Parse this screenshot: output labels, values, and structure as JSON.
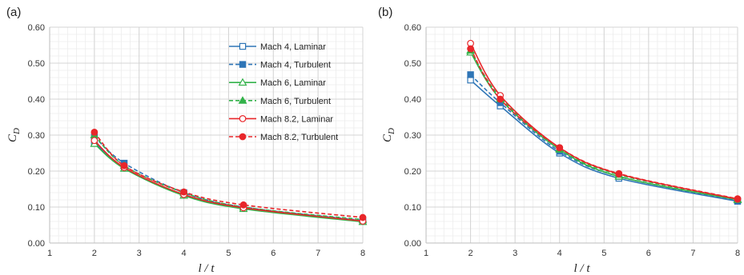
{
  "chart_data": [
    {
      "type": "line",
      "panel_label": "(a)",
      "xlabel": "l / t",
      "ylabel": "C_D",
      "xlim": [
        1,
        8
      ],
      "ylim": [
        0,
        0.6
      ],
      "xticks": [
        "1",
        "2",
        "3",
        "4",
        "5",
        "6",
        "7",
        "8"
      ],
      "yticks": [
        "0.00",
        "0.10",
        "0.20",
        "0.30",
        "0.40",
        "0.50",
        "0.60"
      ],
      "grid": true,
      "legend": "top-right",
      "series": [
        {
          "name": "Mach 4, Laminar",
          "color": "#2e75b6",
          "dash": false,
          "marker": "square-open",
          "x": [
            2,
            2.667,
            4,
            5.333,
            8
          ],
          "y": [
            0.28,
            0.208,
            0.133,
            0.096,
            0.06
          ]
        },
        {
          "name": "Mach 4, Turbulent",
          "color": "#2e75b6",
          "dash": true,
          "marker": "square-filled",
          "x": [
            2,
            2.667,
            4,
            5.333,
            8
          ],
          "y": [
            0.295,
            0.222,
            0.14,
            0.1,
            0.063
          ]
        },
        {
          "name": "Mach 6, Laminar",
          "color": "#33b24a",
          "dash": false,
          "marker": "triangle-open",
          "x": [
            2,
            2.667,
            4,
            5.333,
            8
          ],
          "y": [
            0.276,
            0.207,
            0.132,
            0.095,
            0.059
          ]
        },
        {
          "name": "Mach 6, Turbulent",
          "color": "#33b24a",
          "dash": true,
          "marker": "triangle-filled",
          "x": [
            2,
            2.667,
            4,
            5.333,
            8
          ],
          "y": [
            0.3,
            0.215,
            0.14,
            0.1,
            0.065
          ]
        },
        {
          "name": "Mach 8.2, Laminar",
          "color": "#e8262a",
          "dash": false,
          "marker": "circle-open",
          "x": [
            2,
            2.667,
            4,
            5.333,
            8
          ],
          "y": [
            0.285,
            0.21,
            0.135,
            0.098,
            0.061
          ]
        },
        {
          "name": "Mach 8.2, Turbulent",
          "color": "#e8262a",
          "dash": true,
          "marker": "circle-filled",
          "x": [
            2,
            2.667,
            4,
            5.333,
            8
          ],
          "y": [
            0.308,
            0.215,
            0.142,
            0.106,
            0.071
          ]
        }
      ]
    },
    {
      "type": "line",
      "panel_label": "(b)",
      "xlabel": "l / t",
      "ylabel": "C_D",
      "xlim": [
        1,
        8
      ],
      "ylim": [
        0,
        0.6
      ],
      "xticks": [
        "1",
        "2",
        "3",
        "4",
        "5",
        "6",
        "7",
        "8"
      ],
      "yticks": [
        "0.00",
        "0.10",
        "0.20",
        "0.30",
        "0.40",
        "0.50",
        "0.60"
      ],
      "grid": true,
      "legend": "none",
      "series": [
        {
          "name": "Mach 4, Laminar",
          "color": "#2e75b6",
          "dash": false,
          "marker": "square-open",
          "x": [
            2,
            2.667,
            4,
            5.333,
            8
          ],
          "y": [
            0.453,
            0.381,
            0.25,
            0.18,
            0.116
          ]
        },
        {
          "name": "Mach 4, Turbulent",
          "color": "#2e75b6",
          "dash": true,
          "marker": "square-filled",
          "x": [
            2,
            2.667,
            4,
            5.333,
            8
          ],
          "y": [
            0.468,
            0.39,
            0.255,
            0.185,
            0.118
          ]
        },
        {
          "name": "Mach 6, Laminar",
          "color": "#33b24a",
          "dash": false,
          "marker": "triangle-open",
          "x": [
            2,
            2.667,
            4,
            5.333,
            8
          ],
          "y": [
            0.53,
            0.4,
            0.26,
            0.185,
            0.12
          ]
        },
        {
          "name": "Mach 6, Turbulent",
          "color": "#33b24a",
          "dash": true,
          "marker": "triangle-filled",
          "x": [
            2,
            2.667,
            4,
            5.333,
            8
          ],
          "y": [
            0.535,
            0.405,
            0.262,
            0.19,
            0.121
          ]
        },
        {
          "name": "Mach 8.2, Laminar",
          "color": "#e8262a",
          "dash": false,
          "marker": "circle-open",
          "x": [
            2,
            2.667,
            4,
            5.333,
            8
          ],
          "y": [
            0.555,
            0.41,
            0.265,
            0.192,
            0.122
          ]
        },
        {
          "name": "Mach 8.2, Turbulent",
          "color": "#e8262a",
          "dash": true,
          "marker": "circle-filled",
          "x": [
            2,
            2.667,
            4,
            5.333,
            8
          ],
          "y": [
            0.54,
            0.4,
            0.265,
            0.193,
            0.123
          ]
        }
      ]
    }
  ]
}
